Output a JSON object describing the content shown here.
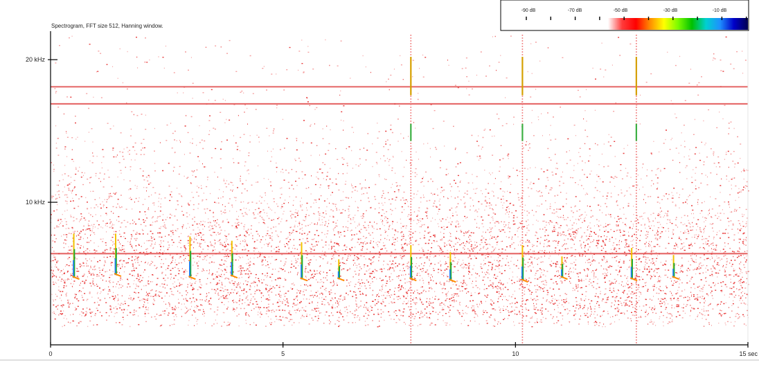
{
  "chart_data": {
    "type": "heatmap",
    "title": "Spectrogram, FFT size 512, Hanning window.",
    "x": {
      "unit_label": "sec",
      "range": [
        0,
        15
      ],
      "ticks": [
        {
          "value": 0,
          "label": "0"
        },
        {
          "value": 5,
          "label": "5"
        },
        {
          "value": 10,
          "label": "10"
        },
        {
          "value": 15,
          "label": "15 sec"
        }
      ]
    },
    "y": {
      "range": [
        0,
        22
      ],
      "ticks": [
        {
          "value": 10,
          "label": "10 kHz"
        },
        {
          "value": 20,
          "label": "20 kHz"
        }
      ]
    },
    "colorbar": {
      "labels": [
        "-90 dB",
        "-70 dB",
        "-50 dB",
        "-30 dB",
        "-10 dB"
      ],
      "stops": [
        "#ffffff",
        "#ff3b3b",
        "#ff0000",
        "#ff8c00",
        "#ffff00",
        "#7cfc00",
        "#00c000",
        "#00d0d0",
        "#1e90ff",
        "#0000c8",
        "#000050"
      ]
    },
    "horizontal_bands_khz": [
      18.1,
      16.9,
      6.4
    ],
    "noise_band_khz": [
      2.0,
      8.0
    ],
    "broadband_clicks_sec": [
      7.75,
      10.15,
      12.6
    ],
    "calls": [
      {
        "t": 0.5,
        "f_low": 4.7,
        "f_high": 7.8
      },
      {
        "t": 1.4,
        "f_low": 4.9,
        "f_high": 7.8
      },
      {
        "t": 3.0,
        "f_low": 4.7,
        "f_high": 7.6
      },
      {
        "t": 3.9,
        "f_low": 4.8,
        "f_high": 7.3
      },
      {
        "t": 5.4,
        "f_low": 4.6,
        "f_high": 7.2
      },
      {
        "t": 6.2,
        "f_low": 4.6,
        "f_high": 6.0
      },
      {
        "t": 7.75,
        "f_low": 4.6,
        "f_high": 7.0
      },
      {
        "t": 8.6,
        "f_low": 4.5,
        "f_high": 6.5
      },
      {
        "t": 10.15,
        "f_low": 4.5,
        "f_high": 7.0
      },
      {
        "t": 11.0,
        "f_low": 4.7,
        "f_high": 6.2
      },
      {
        "t": 12.5,
        "f_low": 4.6,
        "f_high": 6.8
      },
      {
        "t": 13.4,
        "f_low": 4.7,
        "f_high": 6.3
      }
    ]
  }
}
